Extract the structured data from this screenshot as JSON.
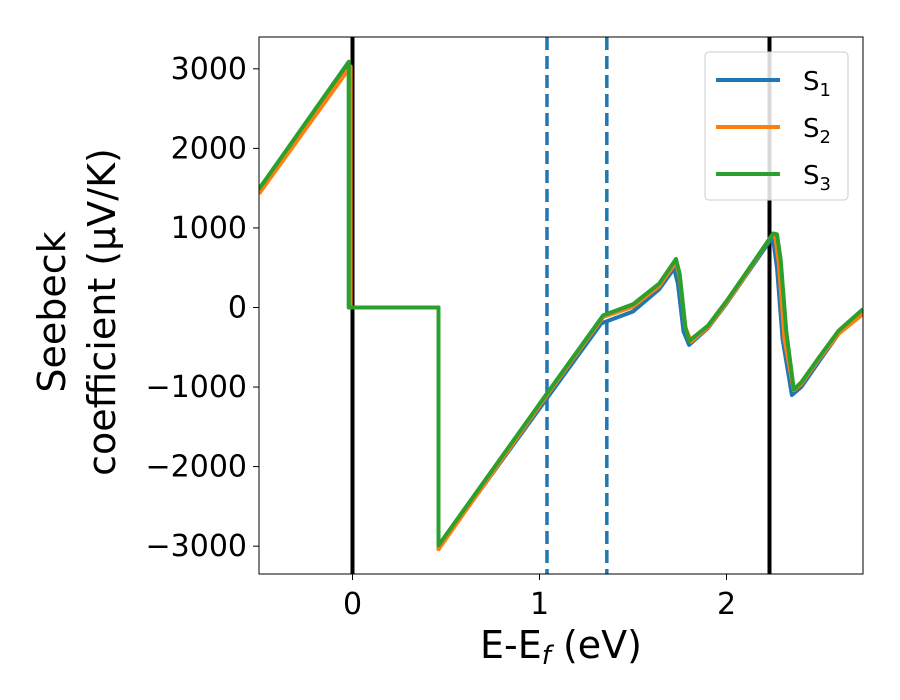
{
  "chart_data": {
    "type": "line",
    "xlabel": "E-E",
    "xlabel_sub": "f",
    "xlabel_unit": " (eV)",
    "ylabel_line1": "Seebeck",
    "ylabel_line2": "coefficient  (μV/K)",
    "xlim": [
      -0.5,
      2.73
    ],
    "ylim": [
      -3350,
      3400
    ],
    "xticks": [
      0,
      1,
      2
    ],
    "xtick_labels": [
      "0",
      "1",
      "2"
    ],
    "yticks": [
      3000,
      2000,
      1000,
      0,
      -1000,
      -2000,
      -3000
    ],
    "ytick_labels": [
      "3000",
      "2000",
      "1000",
      "0",
      "−1000",
      "−2000",
      "−3000"
    ],
    "legend": {
      "position": "top-right",
      "entries": [
        {
          "main": "S",
          "sub": "1"
        },
        {
          "main": "S",
          "sub": "2"
        },
        {
          "main": "S",
          "sub": "3"
        }
      ]
    },
    "vlines": [
      {
        "x": 0.0,
        "style": "solid",
        "color": "#000000"
      },
      {
        "x": 2.23,
        "style": "solid",
        "color": "#000000"
      },
      {
        "x": 1.04,
        "style": "dashed",
        "color": "#1f77b4"
      },
      {
        "x": 1.36,
        "style": "dashed",
        "color": "#1f77b4"
      }
    ],
    "series": [
      {
        "color": "#1f77b4",
        "points": [
          [
            -0.5,
            1460
          ],
          [
            -0.02,
            3020
          ],
          [
            -0.02,
            0
          ],
          [
            0.46,
            0
          ],
          [
            0.46,
            -3020
          ],
          [
            1.04,
            -1140
          ],
          [
            1.33,
            -200
          ],
          [
            1.5,
            -50
          ],
          [
            1.64,
            230
          ],
          [
            1.72,
            490
          ],
          [
            1.74,
            300
          ],
          [
            1.77,
            -300
          ],
          [
            1.8,
            -470
          ],
          [
            1.9,
            -260
          ],
          [
            2.0,
            50
          ],
          [
            2.1,
            390
          ],
          [
            2.23,
            830
          ],
          [
            2.25,
            850
          ],
          [
            2.27,
            500
          ],
          [
            2.3,
            -400
          ],
          [
            2.35,
            -1100
          ],
          [
            2.4,
            -1000
          ],
          [
            2.5,
            -660
          ],
          [
            2.6,
            -330
          ],
          [
            2.73,
            -50
          ]
        ]
      },
      {
        "color": "#ff7f0e",
        "points": [
          [
            -0.5,
            1430
          ],
          [
            -0.01,
            3030
          ],
          [
            -0.01,
            0
          ],
          [
            0.46,
            0
          ],
          [
            0.46,
            -3040
          ],
          [
            1.04,
            -1100
          ],
          [
            1.34,
            -120
          ],
          [
            1.5,
            10
          ],
          [
            1.64,
            270
          ],
          [
            1.73,
            570
          ],
          [
            1.75,
            380
          ],
          [
            1.78,
            -250
          ],
          [
            1.81,
            -430
          ],
          [
            1.9,
            -250
          ],
          [
            2.0,
            60
          ],
          [
            2.1,
            400
          ],
          [
            2.24,
            900
          ],
          [
            2.26,
            900
          ],
          [
            2.28,
            550
          ],
          [
            2.31,
            -400
          ],
          [
            2.36,
            -1040
          ],
          [
            2.4,
            -960
          ],
          [
            2.5,
            -630
          ],
          [
            2.6,
            -330
          ],
          [
            2.73,
            -80
          ]
        ]
      },
      {
        "color": "#2ca02c",
        "points": [
          [
            -0.5,
            1490
          ],
          [
            -0.02,
            3090
          ],
          [
            -0.02,
            0
          ],
          [
            0.46,
            0
          ],
          [
            0.46,
            -2990
          ],
          [
            1.04,
            -1080
          ],
          [
            1.34,
            -100
          ],
          [
            1.5,
            40
          ],
          [
            1.64,
            300
          ],
          [
            1.73,
            610
          ],
          [
            1.75,
            420
          ],
          [
            1.78,
            -250
          ],
          [
            1.8,
            -420
          ],
          [
            1.9,
            -230
          ],
          [
            2.0,
            80
          ],
          [
            2.1,
            420
          ],
          [
            2.25,
            930
          ],
          [
            2.27,
            920
          ],
          [
            2.29,
            600
          ],
          [
            2.32,
            -300
          ],
          [
            2.36,
            -1030
          ],
          [
            2.4,
            -940
          ],
          [
            2.5,
            -610
          ],
          [
            2.6,
            -290
          ],
          [
            2.73,
            -20
          ]
        ]
      }
    ]
  }
}
